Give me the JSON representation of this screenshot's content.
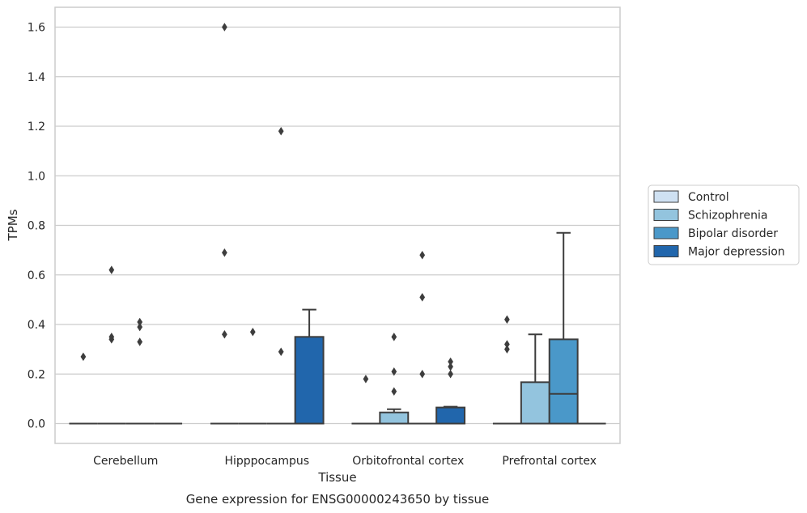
{
  "chart_data": {
    "type": "box",
    "title": "",
    "caption": "Gene expression for ENSG00000243650 by tissue",
    "xlabel": "Tissue",
    "ylabel": "TPMs",
    "ylim": [
      -0.08,
      1.68
    ],
    "yticks": [
      "0.0",
      "0.2",
      "0.4",
      "0.6",
      "0.8",
      "1.0",
      "1.2",
      "1.4",
      "1.6"
    ],
    "grid": "horizontal",
    "legend_position": "right, outside plot",
    "categories": [
      "Cerebellum",
      "Hipppocampus",
      "Orbitofrontal cortex",
      "Prefrontal cortex"
    ],
    "series": [
      {
        "name": "Control",
        "color": "#cfe1f2",
        "boxes": [
          {
            "q1": 0,
            "median": 0,
            "q3": 0,
            "whisker_low": 0,
            "whisker_high": 0,
            "outliers": [
              0.27
            ]
          },
          {
            "q1": 0,
            "median": 0,
            "q3": 0,
            "whisker_low": 0,
            "whisker_high": 0,
            "outliers": [
              0.36,
              0.69,
              1.6
            ]
          },
          {
            "q1": 0,
            "median": 0,
            "q3": 0,
            "whisker_low": 0,
            "whisker_high": 0,
            "outliers": [
              0.18
            ]
          },
          {
            "q1": 0,
            "median": 0,
            "q3": 0,
            "whisker_low": 0,
            "whisker_high": 0,
            "outliers": [
              0.3,
              0.32,
              0.42
            ]
          }
        ]
      },
      {
        "name": "Schizophrenia",
        "color": "#93c4de",
        "boxes": [
          {
            "q1": 0,
            "median": 0,
            "q3": 0,
            "whisker_low": 0,
            "whisker_high": 0,
            "outliers": [
              0.34,
              0.35,
              0.62
            ]
          },
          {
            "q1": 0,
            "median": 0,
            "q3": 0,
            "whisker_low": 0,
            "whisker_high": 0,
            "outliers": [
              0.37
            ]
          },
          {
            "q1": 0,
            "median": 0,
            "q3": 0.045,
            "whisker_low": 0,
            "whisker_high": 0.058,
            "outliers": [
              0.13,
              0.21,
              0.35
            ]
          },
          {
            "q1": 0,
            "median": 0,
            "q3": 0.167,
            "whisker_low": 0,
            "whisker_high": 0.36,
            "outliers": []
          }
        ]
      },
      {
        "name": "Bipolar disorder",
        "color": "#4a98c9",
        "boxes": [
          {
            "q1": 0,
            "median": 0,
            "q3": 0,
            "whisker_low": 0,
            "whisker_high": 0,
            "outliers": [
              0.33,
              0.39,
              0.41
            ]
          },
          {
            "q1": 0,
            "median": 0,
            "q3": 0,
            "whisker_low": 0,
            "whisker_high": 0,
            "outliers": [
              0.29,
              1.18
            ]
          },
          {
            "q1": 0,
            "median": 0,
            "q3": 0,
            "whisker_low": 0,
            "whisker_high": 0,
            "outliers": [
              0.2,
              0.51,
              0.68
            ]
          },
          {
            "q1": 0,
            "median": 0.12,
            "q3": 0.34,
            "whisker_low": 0,
            "whisker_high": 0.77,
            "outliers": []
          }
        ]
      },
      {
        "name": "Major depression",
        "color": "#2166ac",
        "boxes": [
          {
            "q1": 0,
            "median": 0,
            "q3": 0,
            "whisker_low": 0,
            "whisker_high": 0,
            "outliers": []
          },
          {
            "q1": 0,
            "median": 0,
            "q3": 0.35,
            "whisker_low": 0,
            "whisker_high": 0.46,
            "outliers": []
          },
          {
            "q1": 0,
            "median": 0,
            "q3": 0.065,
            "whisker_low": 0,
            "whisker_high": 0.068,
            "outliers": [
              0.2,
              0.23,
              0.25
            ]
          },
          {
            "q1": 0,
            "median": 0,
            "q3": 0,
            "whisker_low": 0,
            "whisker_high": 0,
            "outliers": []
          }
        ]
      }
    ]
  }
}
